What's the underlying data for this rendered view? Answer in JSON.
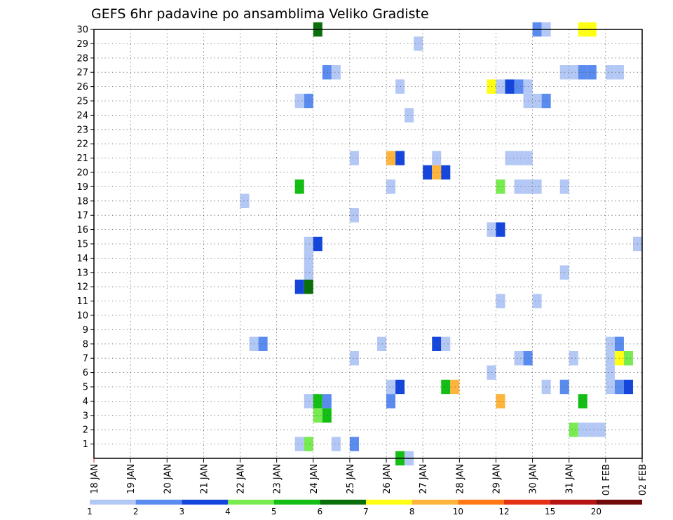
{
  "chart_data": {
    "type": "heatmap",
    "title": "GEFS 6hr padavine po ansamblima Veliko Gradiste",
    "ylim": [
      1,
      30
    ],
    "y_ticks": [
      "1",
      "2",
      "3",
      "4",
      "5",
      "6",
      "7",
      "8",
      "9",
      "10",
      "11",
      "12",
      "13",
      "14",
      "15",
      "16",
      "17",
      "18",
      "19",
      "20",
      "21",
      "22",
      "23",
      "24",
      "25",
      "26",
      "27",
      "28",
      "29",
      "30"
    ],
    "x_ticks": [
      "18 JAN",
      "19 JAN",
      "20 JAN",
      "21 JAN",
      "22 JAN",
      "23 JAN",
      "24 JAN",
      "25 JAN",
      "26 JAN",
      "27 JAN",
      "28 JAN",
      "29 JAN",
      "30 JAN",
      "31 JAN",
      "01 FEB",
      "02 FEB"
    ],
    "grid": true,
    "legend": {
      "placement": "bottom",
      "labels": [
        "1",
        "2",
        "3",
        "4",
        "5",
        "6",
        "7",
        "8",
        "10",
        "12",
        "15",
        "20"
      ],
      "colors": [
        "#b4c8f5",
        "#5a8cf0",
        "#1446dc",
        "#78eb50",
        "#14be14",
        "#0a6e0a",
        "#ffff14",
        "#ffb43c",
        "#ff7814",
        "#e63214",
        "#b41414",
        "#6e0a0a"
      ]
    },
    "cells": [
      {
        "m": 30,
        "d": 6.0,
        "lvl": 5
      },
      {
        "m": 30,
        "d": 12.0,
        "lvl": 1
      },
      {
        "m": 30,
        "d": 12.25,
        "lvl": 0
      },
      {
        "m": 30,
        "d": 13.25,
        "lvl": 6
      },
      {
        "m": 30,
        "d": 13.5,
        "lvl": 6
      },
      {
        "m": 29,
        "d": 8.75,
        "lvl": 0
      },
      {
        "m": 27,
        "d": 6.25,
        "lvl": 1
      },
      {
        "m": 27,
        "d": 6.5,
        "lvl": 0
      },
      {
        "m": 27,
        "d": 12.75,
        "lvl": 0
      },
      {
        "m": 27,
        "d": 13.0,
        "lvl": 0
      },
      {
        "m": 27,
        "d": 13.25,
        "lvl": 1
      },
      {
        "m": 27,
        "d": 13.5,
        "lvl": 1
      },
      {
        "m": 27,
        "d": 14.0,
        "lvl": 0
      },
      {
        "m": 27,
        "d": 14.25,
        "lvl": 0
      },
      {
        "m": 26,
        "d": 8.25,
        "lvl": 0
      },
      {
        "m": 26,
        "d": 10.75,
        "lvl": 6
      },
      {
        "m": 26,
        "d": 11.0,
        "lvl": 0
      },
      {
        "m": 26,
        "d": 11.25,
        "lvl": 2
      },
      {
        "m": 26,
        "d": 11.5,
        "lvl": 1
      },
      {
        "m": 26,
        "d": 11.75,
        "lvl": 0
      },
      {
        "m": 25,
        "d": 5.5,
        "lvl": 0
      },
      {
        "m": 25,
        "d": 5.75,
        "lvl": 1
      },
      {
        "m": 25,
        "d": 11.75,
        "lvl": 0
      },
      {
        "m": 25,
        "d": 12.0,
        "lvl": 0
      },
      {
        "m": 25,
        "d": 12.25,
        "lvl": 1
      },
      {
        "m": 24,
        "d": 8.5,
        "lvl": 0
      },
      {
        "m": 21,
        "d": 7.0,
        "lvl": 0
      },
      {
        "m": 21,
        "d": 8.0,
        "lvl": 7
      },
      {
        "m": 21,
        "d": 8.25,
        "lvl": 2
      },
      {
        "m": 21,
        "d": 9.25,
        "lvl": 0
      },
      {
        "m": 21,
        "d": 11.25,
        "lvl": 0
      },
      {
        "m": 21,
        "d": 11.5,
        "lvl": 0
      },
      {
        "m": 21,
        "d": 11.75,
        "lvl": 0
      },
      {
        "m": 20,
        "d": 9.0,
        "lvl": 2
      },
      {
        "m": 20,
        "d": 9.25,
        "lvl": 7
      },
      {
        "m": 20,
        "d": 9.5,
        "lvl": 2
      },
      {
        "m": 19,
        "d": 5.5,
        "lvl": 4
      },
      {
        "m": 19,
        "d": 8.0,
        "lvl": 0
      },
      {
        "m": 19,
        "d": 11.0,
        "lvl": 3
      },
      {
        "m": 19,
        "d": 11.5,
        "lvl": 0
      },
      {
        "m": 19,
        "d": 11.75,
        "lvl": 0
      },
      {
        "m": 19,
        "d": 12.0,
        "lvl": 0
      },
      {
        "m": 19,
        "d": 12.75,
        "lvl": 0
      },
      {
        "m": 18,
        "d": 4.0,
        "lvl": 0
      },
      {
        "m": 17,
        "d": 7.0,
        "lvl": 0
      },
      {
        "m": 16,
        "d": 10.75,
        "lvl": 0
      },
      {
        "m": 16,
        "d": 11.0,
        "lvl": 2
      },
      {
        "m": 15,
        "d": 5.75,
        "lvl": 0
      },
      {
        "m": 15,
        "d": 6.0,
        "lvl": 2
      },
      {
        "m": 15,
        "d": 14.75,
        "lvl": 0
      },
      {
        "m": 14,
        "d": 5.75,
        "lvl": 0
      },
      {
        "m": 13,
        "d": 5.75,
        "lvl": 0
      },
      {
        "m": 13,
        "d": 12.75,
        "lvl": 0
      },
      {
        "m": 12,
        "d": 5.5,
        "lvl": 2
      },
      {
        "m": 12,
        "d": 5.75,
        "lvl": 5
      },
      {
        "m": 11,
        "d": 11.0,
        "lvl": 0
      },
      {
        "m": 11,
        "d": 12.0,
        "lvl": 0
      },
      {
        "m": 8,
        "d": 4.25,
        "lvl": 0
      },
      {
        "m": 8,
        "d": 4.5,
        "lvl": 1
      },
      {
        "m": 8,
        "d": 7.75,
        "lvl": 0
      },
      {
        "m": 8,
        "d": 9.25,
        "lvl": 2
      },
      {
        "m": 8,
        "d": 9.5,
        "lvl": 0
      },
      {
        "m": 8,
        "d": 14.0,
        "lvl": 0
      },
      {
        "m": 8,
        "d": 14.25,
        "lvl": 1
      },
      {
        "m": 7,
        "d": 7.0,
        "lvl": 0
      },
      {
        "m": 7,
        "d": 11.5,
        "lvl": 0
      },
      {
        "m": 7,
        "d": 11.75,
        "lvl": 1
      },
      {
        "m": 7,
        "d": 13.0,
        "lvl": 0
      },
      {
        "m": 7,
        "d": 14.0,
        "lvl": 0
      },
      {
        "m": 7,
        "d": 14.25,
        "lvl": 6
      },
      {
        "m": 7,
        "d": 14.5,
        "lvl": 3
      },
      {
        "m": 6,
        "d": 10.75,
        "lvl": 0
      },
      {
        "m": 6,
        "d": 14.0,
        "lvl": 0
      },
      {
        "m": 5,
        "d": 8.0,
        "lvl": 0
      },
      {
        "m": 5,
        "d": 8.25,
        "lvl": 2
      },
      {
        "m": 5,
        "d": 9.5,
        "lvl": 4
      },
      {
        "m": 5,
        "d": 9.75,
        "lvl": 7
      },
      {
        "m": 5,
        "d": 12.25,
        "lvl": 0
      },
      {
        "m": 5,
        "d": 12.75,
        "lvl": 1
      },
      {
        "m": 5,
        "d": 14.0,
        "lvl": 0
      },
      {
        "m": 5,
        "d": 14.25,
        "lvl": 1
      },
      {
        "m": 5,
        "d": 14.5,
        "lvl": 2
      },
      {
        "m": 4,
        "d": 5.75,
        "lvl": 0
      },
      {
        "m": 4,
        "d": 6.0,
        "lvl": 4
      },
      {
        "m": 4,
        "d": 6.25,
        "lvl": 1
      },
      {
        "m": 4,
        "d": 8.0,
        "lvl": 1
      },
      {
        "m": 4,
        "d": 11.0,
        "lvl": 7
      },
      {
        "m": 4,
        "d": 13.25,
        "lvl": 4
      },
      {
        "m": 3,
        "d": 6.0,
        "lvl": 3
      },
      {
        "m": 3,
        "d": 6.25,
        "lvl": 4
      },
      {
        "m": 2,
        "d": 13.0,
        "lvl": 3
      },
      {
        "m": 2,
        "d": 13.25,
        "lvl": 0
      },
      {
        "m": 2,
        "d": 13.5,
        "lvl": 0
      },
      {
        "m": 2,
        "d": 13.75,
        "lvl": 0
      },
      {
        "m": 1,
        "d": 5.5,
        "lvl": 0
      },
      {
        "m": 1,
        "d": 5.75,
        "lvl": 3
      },
      {
        "m": 1,
        "d": 6.5,
        "lvl": 0
      },
      {
        "m": 1,
        "d": 7.0,
        "lvl": 1
      },
      {
        "m": 0,
        "d": 8.25,
        "lvl": 4
      },
      {
        "m": 0,
        "d": 8.5,
        "lvl": 0
      }
    ]
  }
}
